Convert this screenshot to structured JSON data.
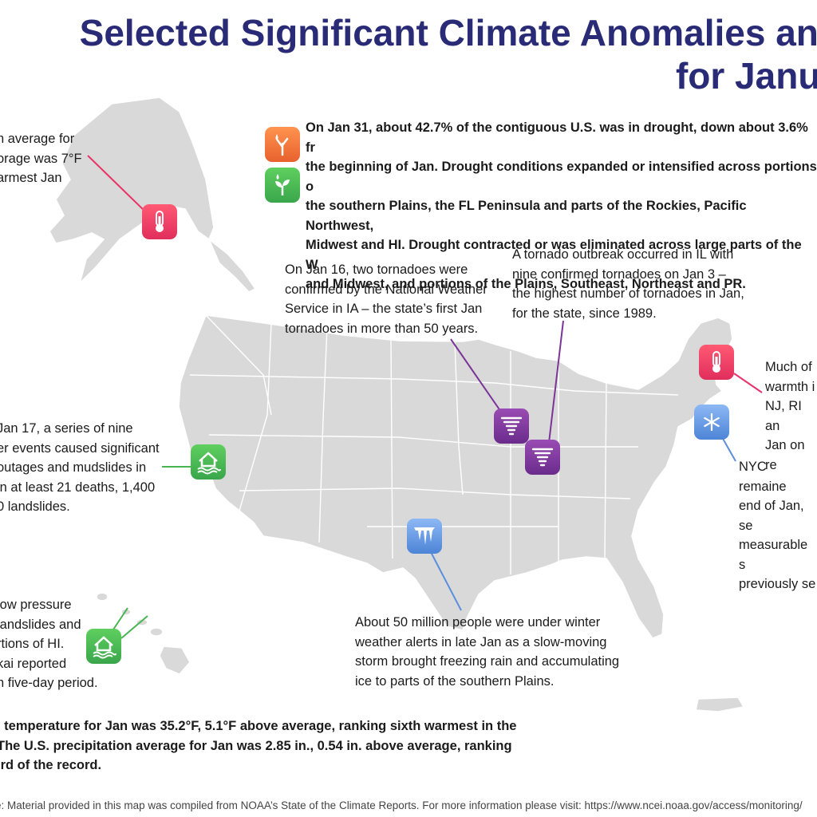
{
  "title": {
    "line1": "Selected Significant Climate Anomalies and",
    "line2": "for Janua"
  },
  "notes": {
    "alaska": "n average for\norage was 7°F\narmest Jan",
    "drought": "On Jan 31, about 42.7% of the contiguous U.S. was in drought, down about 3.6% fr\nthe beginning of Jan. Drought conditions expanded or intensified across portions o\nthe southern Plains, the FL Peninsula and parts of the Rockies, Pacific Northwest,\nMidwest and HI. Drought contracted or was eliminated across large parts of the W\nand Midwest, and portions of the Plains, Southeast, Northeast and PR.",
    "iowa": "On Jan 16, two tornadoes were\nconfirmed by the National Weather\nService in IA – the state’s first Jan\ntornadoes in more than 50 years.",
    "illinois": "A tornado outbreak occurred in IL with\nnine confirmed tornadoes on Jan 3 –\nthe highest number of tornadoes in Jan,\nfor the state, since 1989.",
    "northeast": "Much of\nwarmth i\nNJ, RI an\nJan on re",
    "california": "Jan 17, a series of nine\ner events caused significant\n outages and mudslides in\n in at least 21 deaths, 1,400\n0 landslides.",
    "nyc": "NYC remaine\nend of Jan, se\nmeasurable s\npreviously se",
    "hawaii": "low pressure\n landslides and\nrtions of HI.\nkai reported\nn five-day period.",
    "plains": "About 50 million people were under winter\nweather alerts in late Jan as a slow-moving\nstorm brought freezing rain and accumulating\nice to parts of the southern Plains.",
    "summary": ". temperature for Jan was 35.2°F, 5.1°F above average, ranking sixth warmest in the\n The U.S. precipitation average for Jan was 2.85 in., 0.54 in. above average, ranking\nird of the record."
  },
  "footer": "e: Material provided in this map was compiled from NOAA’s State of the Climate Reports. For more information please visit: https://www.ncei.noaa.gov/access/monitoring/",
  "icons": {
    "alaska": "thermometer-icon",
    "drought": "dry-plant-icon",
    "wet": "sprouting-plant-icon",
    "northeast": "thermometer-icon",
    "nyc": "snowflake-icon",
    "california": "flooded-house-icon",
    "hawaii": "flooded-house-icon",
    "iowa": "tornado-icon",
    "illinois": "tornado-icon",
    "plains": "icicles-icon"
  },
  "colors": {
    "title": "#2a2b76",
    "land": "#d9d9d9",
    "warm": "#e8336b",
    "drought": "#ef7a3a",
    "wet": "#48b553",
    "tornado": "#7b3598",
    "cold": "#5b8fdc"
  }
}
